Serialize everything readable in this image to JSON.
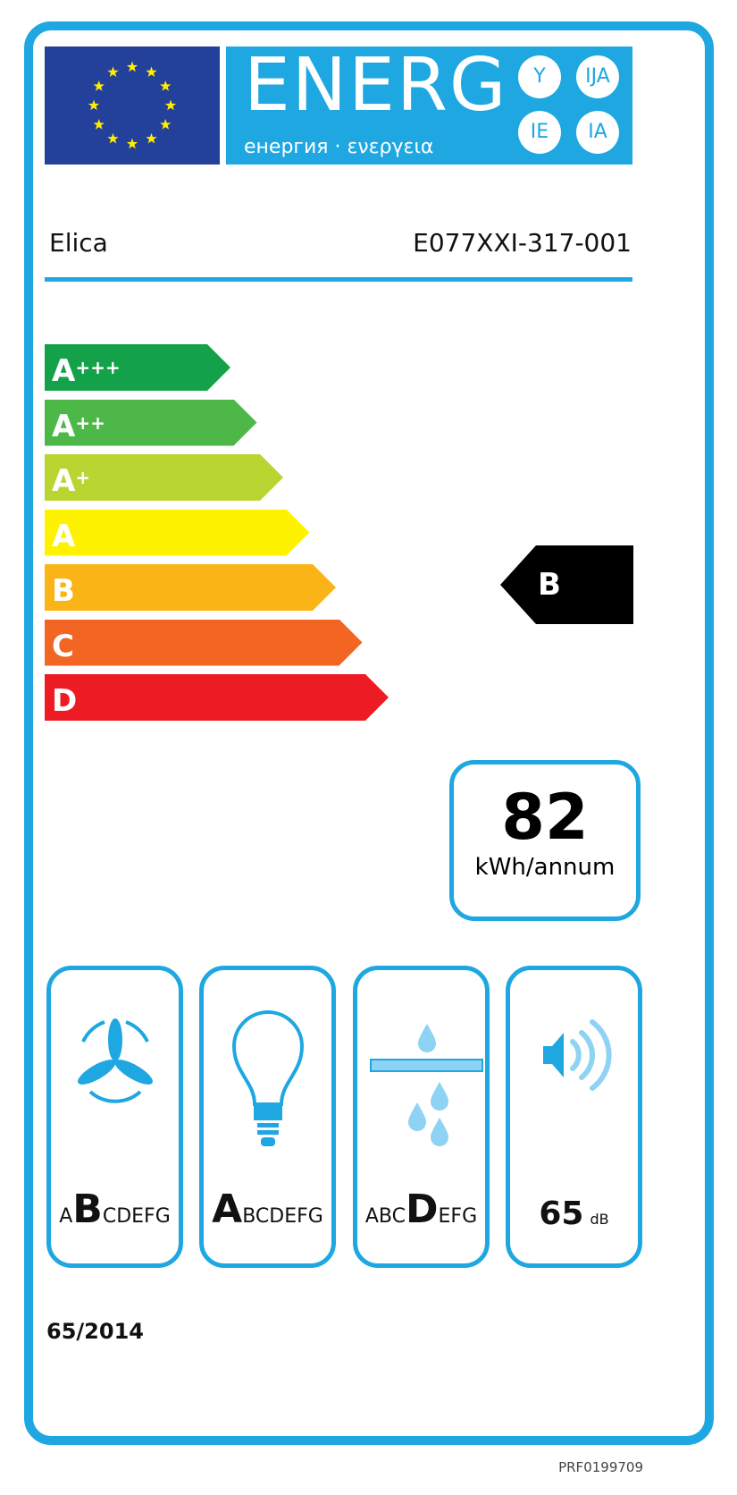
{
  "header": {
    "title": "ENERG",
    "subtitle": "енергия · ενεργεια",
    "suffixes": [
      "Y",
      "IJA",
      "IE",
      "IA"
    ]
  },
  "supplier": "Elica",
  "model": "E077XXI-317-001",
  "scale": [
    {
      "label": "A",
      "plus": "+++",
      "color": "#13a24a"
    },
    {
      "label": "A",
      "plus": "++",
      "color": "#4db848"
    },
    {
      "label": "A",
      "plus": "+",
      "color": "#b9d531"
    },
    {
      "label": "A",
      "plus": "",
      "color": "#fff200"
    },
    {
      "label": "B",
      "plus": "",
      "color": "#fbb416"
    },
    {
      "label": "C",
      "plus": "",
      "color": "#f26522"
    },
    {
      "label": "D",
      "plus": "",
      "color": "#ed1c24"
    }
  ],
  "rating": "B",
  "consumption": {
    "value": "82",
    "unit": "kWh/annum"
  },
  "fluid_dynamic": {
    "pre": "A",
    "class": "B",
    "post": "CDEFG"
  },
  "lighting": {
    "pre": "",
    "class": "A",
    "post": "BCDEFG"
  },
  "grease": {
    "pre": "ABC",
    "class": "D",
    "post": "EFG"
  },
  "noise": {
    "value": "65",
    "unit": "dB"
  },
  "regulation": "65/2014",
  "code": "PRF0199709",
  "colors": {
    "accent": "#1ea7e1",
    "eu_blue": "#23409a",
    "stars": "#ffed00"
  }
}
